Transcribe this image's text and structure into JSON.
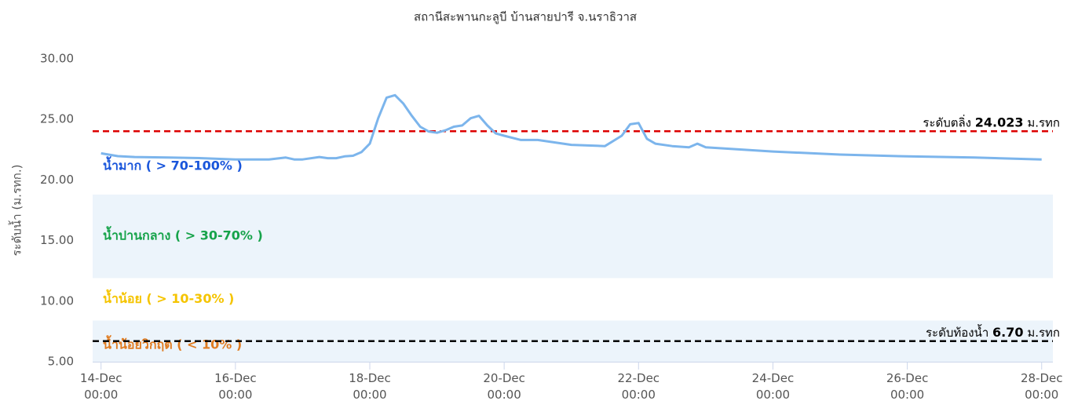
{
  "chart_data": {
    "type": "line",
    "title": "สถานีสะพานกะลูบี บ้านสายปารี จ.นราธิวาส",
    "y_axis_title": "ระดับน้ำ (ม.รทก.)",
    "x": [
      "14-Dec 00:00",
      "14-Dec 06:00",
      "14-Dec 12:00",
      "15-Dec 00:00",
      "15-Dec 12:00",
      "16-Dec 00:00",
      "16-Dec 12:00",
      "16-Dec 18:00",
      "16-Dec 21:00",
      "17-Dec 00:00",
      "17-Dec 06:00",
      "17-Dec 09:00",
      "17-Dec 12:00",
      "17-Dec 15:00",
      "17-Dec 18:00",
      "17-Dec 21:00",
      "18-Dec 00:00",
      "18-Dec 03:00",
      "18-Dec 06:00",
      "18-Dec 09:00",
      "18-Dec 12:00",
      "18-Dec 15:00",
      "18-Dec 18:00",
      "18-Dec 21:00",
      "19-Dec 00:00",
      "19-Dec 03:00",
      "19-Dec 06:00",
      "19-Dec 09:00",
      "19-Dec 12:00",
      "19-Dec 15:00",
      "19-Dec 18:00",
      "19-Dec 21:00",
      "20-Dec 00:00",
      "20-Dec 06:00",
      "20-Dec 12:00",
      "21-Dec 00:00",
      "21-Dec 12:00",
      "21-Dec 18:00",
      "21-Dec 21:00",
      "22-Dec 00:00",
      "22-Dec 03:00",
      "22-Dec 06:00",
      "22-Dec 12:00",
      "22-Dec 18:00",
      "22-Dec 21:00",
      "23-Dec 00:00",
      "24-Dec 00:00",
      "25-Dec 00:00",
      "26-Dec 00:00",
      "27-Dec 00:00",
      "28-Dec 00:00"
    ],
    "series": [
      {
        "color": "#7cb5ec",
        "values": [
          22.2,
          21.97,
          21.9,
          21.85,
          21.8,
          21.7,
          21.7,
          21.85,
          21.7,
          21.7,
          21.9,
          21.8,
          21.8,
          21.95,
          22.0,
          22.3,
          23.0,
          25.1,
          26.8,
          27.0,
          26.3,
          25.3,
          24.4,
          24.0,
          23.9,
          24.1,
          24.4,
          24.5,
          25.1,
          25.3,
          24.5,
          23.85,
          23.65,
          23.3,
          23.3,
          22.9,
          22.8,
          23.65,
          24.6,
          24.7,
          23.4,
          23.0,
          22.8,
          22.7,
          23.0,
          22.7,
          22.35,
          22.1,
          21.95,
          21.85,
          21.7
        ]
      }
    ],
    "xlim": [
      "13-Dec 21:00",
      "28-Dec 04:00"
    ],
    "xticks": [
      "14-Dec 00:00",
      "16-Dec 00:00",
      "18-Dec 00:00",
      "20-Dec 00:00",
      "22-Dec 00:00",
      "24-Dec 00:00",
      "26-Dec 00:00",
      "28-Dec 00:00"
    ],
    "ylim": [
      5,
      30
    ],
    "yticks": [
      {
        "value": 5,
        "label": "5.00"
      },
      {
        "value": 10,
        "label": "10.00"
      },
      {
        "value": 15,
        "label": "15.00"
      },
      {
        "value": 20,
        "label": "20.00"
      },
      {
        "value": 25,
        "label": "25.00"
      },
      {
        "value": 30,
        "label": "30.00"
      }
    ],
    "plot_bands": [
      {
        "from": 18.8,
        "to": 30,
        "color": "#ffffff",
        "label": "น้ำมาก ( > 70-100% )",
        "label_color": "#1a56db"
      },
      {
        "from": 11.9,
        "to": 18.8,
        "color": "#ecf4fb",
        "label": "น้ำปานกลาง ( > 30-70% )",
        "label_color": "#16a34a"
      },
      {
        "from": 8.4,
        "to": 11.9,
        "color": "#ffffff",
        "label": "น้ำน้อย ( > 10-30% )",
        "label_color": "#f5c400"
      },
      {
        "from": 5,
        "to": 8.4,
        "color": "#ecf4fb",
        "label": "น้ำน้อยวิกฤต ( < 10% )",
        "label_color": "#e07b20"
      }
    ],
    "plot_lines": [
      {
        "value": 24.023,
        "value_label": "24.023",
        "color": "#dd0000",
        "label": "ระดับตลิ่ง",
        "unit": "ม.รทก"
      },
      {
        "value": 6.7,
        "value_label": "6.70",
        "color": "#000000",
        "label": "ระดับท้องน้ำ",
        "unit": "ม.รทก"
      }
    ]
  }
}
